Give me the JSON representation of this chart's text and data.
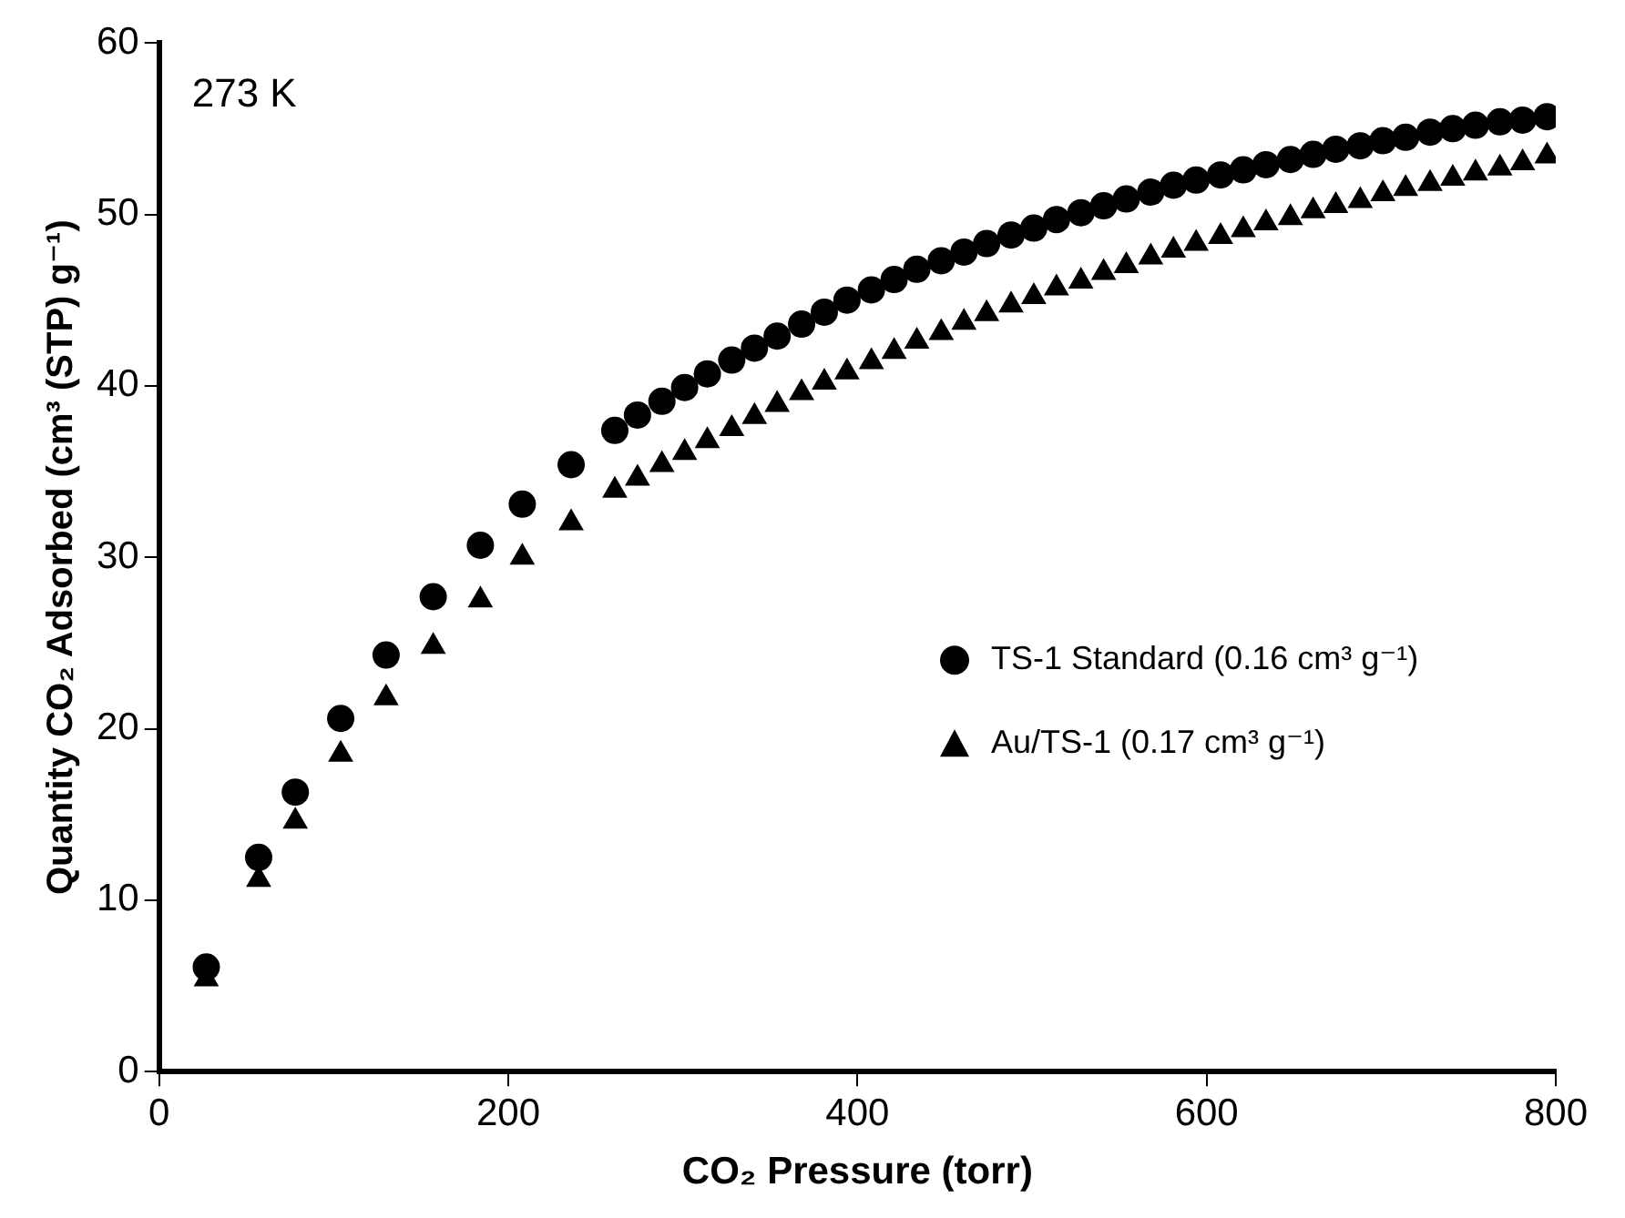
{
  "chart_data": {
    "type": "scatter",
    "xlabel": "CO₂ Pressure (torr)",
    "ylabel": "Quantity CO₂ Adsorbed (cm³ (STP) g⁻¹)",
    "annotations": [
      "273 K"
    ],
    "xlim": [
      0,
      800
    ],
    "xticks": [
      0,
      200,
      400,
      600,
      800
    ],
    "ylim": [
      0,
      60
    ],
    "yticks": [
      0,
      10,
      20,
      30,
      40,
      50,
      60
    ],
    "grid": false,
    "legend": "right",
    "x": [
      27,
      57,
      78,
      104,
      130,
      157,
      184,
      208,
      236,
      261,
      274,
      288,
      301,
      314,
      328,
      341,
      354,
      368,
      381,
      394,
      408,
      421,
      434,
      448,
      461,
      474,
      488,
      501,
      514,
      528,
      541,
      554,
      568,
      581,
      594,
      608,
      621,
      634,
      648,
      661,
      674,
      688,
      701,
      714,
      728,
      741,
      754,
      768,
      781,
      795
    ],
    "series": [
      {
        "name": "TS-1 Standard (0.16 cm³ g⁻¹)",
        "color": "#000000",
        "marker": "circle",
        "values": [
          6.1,
          12.5,
          16.3,
          20.6,
          24.3,
          27.7,
          30.7,
          33.1,
          35.4,
          37.4,
          38.3,
          39.1,
          39.9,
          40.7,
          41.5,
          42.2,
          42.9,
          43.6,
          44.3,
          45.0,
          45.6,
          46.2,
          46.8,
          47.3,
          47.8,
          48.3,
          48.8,
          49.2,
          49.7,
          50.1,
          50.5,
          50.9,
          51.3,
          51.7,
          52.0,
          52.3,
          52.6,
          52.9,
          53.2,
          53.5,
          53.8,
          54.0,
          54.3,
          54.5,
          54.8,
          55.0,
          55.2,
          55.4,
          55.5,
          55.7
        ]
      },
      {
        "name": "Au/TS-1 (0.17 cm³ g⁻¹)",
        "color": "#000000",
        "marker": "triangle",
        "values": [
          5.4,
          11.2,
          14.6,
          18.5,
          21.8,
          24.8,
          27.5,
          30.0,
          32.0,
          33.9,
          34.6,
          35.4,
          36.1,
          36.8,
          37.5,
          38.2,
          38.9,
          39.6,
          40.2,
          40.8,
          41.4,
          42.0,
          42.6,
          43.1,
          43.7,
          44.2,
          44.7,
          45.2,
          45.7,
          46.1,
          46.6,
          47.0,
          47.5,
          47.9,
          48.3,
          48.7,
          49.1,
          49.5,
          49.8,
          50.2,
          50.5,
          50.8,
          51.2,
          51.5,
          51.8,
          52.1,
          52.4,
          52.7,
          53.0,
          53.4
        ]
      }
    ]
  }
}
